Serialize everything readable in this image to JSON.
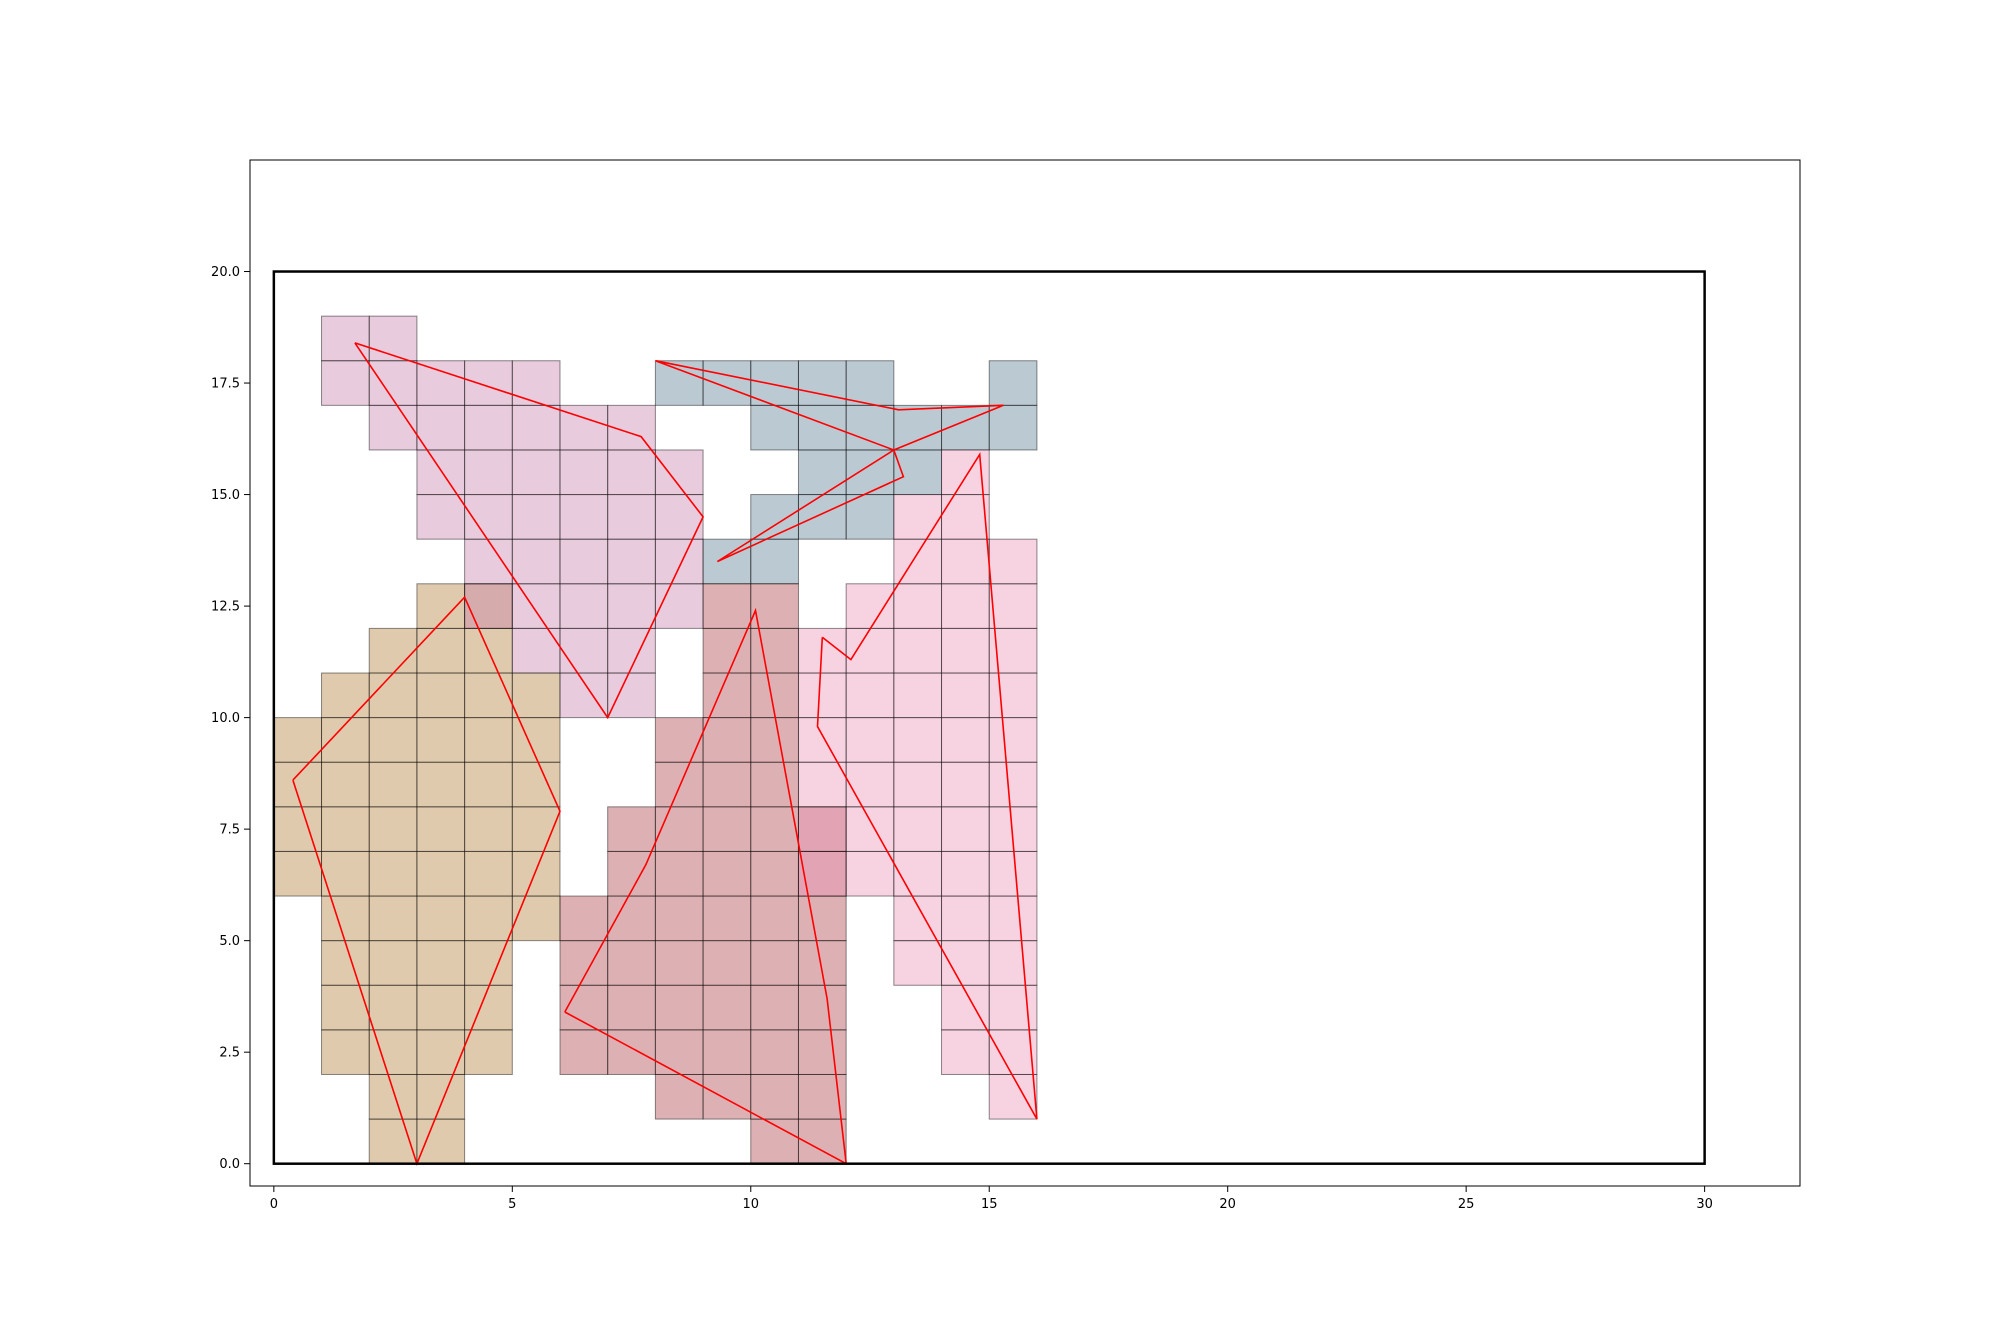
{
  "chart_data": {
    "type": "polygon-grid",
    "xlim": [
      -0.5,
      32
    ],
    "ylim": [
      -0.5,
      22.5
    ],
    "x_ticks": [
      0,
      5,
      10,
      15,
      20,
      25,
      30
    ],
    "x_tick_labels": [
      "0",
      "5",
      "10",
      "15",
      "20",
      "25",
      "30"
    ],
    "y_ticks": [
      0,
      2.5,
      5,
      7.5,
      10,
      12.5,
      15,
      17.5,
      20
    ],
    "y_tick_labels": [
      "0.0",
      "2.5",
      "5.0",
      "7.5",
      "10.0",
      "12.5",
      "15.0",
      "17.5",
      "20.0"
    ],
    "boundary": {
      "x": [
        0,
        30
      ],
      "y": [
        0,
        20
      ],
      "color": "#000000"
    },
    "grid": false,
    "regions": [
      {
        "color": "#b07a35",
        "cells": [
          [
            0,
            6
          ],
          [
            0,
            7
          ],
          [
            0,
            8
          ],
          [
            0,
            9
          ],
          [
            1,
            2
          ],
          [
            1,
            3
          ],
          [
            1,
            4
          ],
          [
            1,
            5
          ],
          [
            1,
            6
          ],
          [
            1,
            7
          ],
          [
            1,
            8
          ],
          [
            1,
            9
          ],
          [
            1,
            10
          ],
          [
            2,
            0
          ],
          [
            2,
            1
          ],
          [
            2,
            2
          ],
          [
            2,
            3
          ],
          [
            2,
            4
          ],
          [
            2,
            5
          ],
          [
            2,
            6
          ],
          [
            2,
            7
          ],
          [
            2,
            8
          ],
          [
            2,
            9
          ],
          [
            2,
            10
          ],
          [
            2,
            11
          ],
          [
            3,
            0
          ],
          [
            3,
            1
          ],
          [
            3,
            2
          ],
          [
            3,
            3
          ],
          [
            3,
            4
          ],
          [
            3,
            5
          ],
          [
            3,
            6
          ],
          [
            3,
            7
          ],
          [
            3,
            8
          ],
          [
            3,
            9
          ],
          [
            3,
            10
          ],
          [
            3,
            11
          ],
          [
            3,
            12
          ],
          [
            4,
            2
          ],
          [
            4,
            3
          ],
          [
            4,
            4
          ],
          [
            4,
            5
          ],
          [
            4,
            6
          ],
          [
            4,
            7
          ],
          [
            4,
            8
          ],
          [
            4,
            9
          ],
          [
            4,
            10
          ],
          [
            4,
            11
          ],
          [
            4,
            12
          ],
          [
            5,
            5
          ],
          [
            5,
            6
          ],
          [
            5,
            7
          ],
          [
            5,
            8
          ],
          [
            5,
            9
          ],
          [
            5,
            10
          ]
        ],
        "polygon": [
          [
            0.4,
            8.6
          ],
          [
            4,
            12.7
          ],
          [
            6,
            7.9
          ],
          [
            3,
            0
          ],
          [
            0.4,
            8.6
          ]
        ]
      },
      {
        "color": "#c67da8",
        "cells": [
          [
            1,
            17
          ],
          [
            1,
            18
          ],
          [
            2,
            16
          ],
          [
            2,
            17
          ],
          [
            2,
            18
          ],
          [
            3,
            14
          ],
          [
            3,
            15
          ],
          [
            3,
            16
          ],
          [
            3,
            17
          ],
          [
            4,
            12
          ],
          [
            4,
            13
          ],
          [
            4,
            14
          ],
          [
            4,
            15
          ],
          [
            4,
            16
          ],
          [
            4,
            17
          ],
          [
            5,
            11
          ],
          [
            5,
            12
          ],
          [
            5,
            13
          ],
          [
            5,
            14
          ],
          [
            5,
            15
          ],
          [
            5,
            16
          ],
          [
            5,
            17
          ],
          [
            6,
            10
          ],
          [
            6,
            11
          ],
          [
            6,
            12
          ],
          [
            6,
            13
          ],
          [
            6,
            14
          ],
          [
            6,
            15
          ],
          [
            6,
            16
          ],
          [
            7,
            10
          ],
          [
            7,
            11
          ],
          [
            7,
            12
          ],
          [
            7,
            13
          ],
          [
            7,
            14
          ],
          [
            7,
            15
          ],
          [
            7,
            16
          ],
          [
            8,
            12
          ],
          [
            8,
            13
          ],
          [
            8,
            14
          ],
          [
            8,
            15
          ]
        ],
        "polygon": [
          [
            1.7,
            18.4
          ],
          [
            7.7,
            16.3
          ],
          [
            9,
            14.5
          ],
          [
            7,
            10
          ],
          [
            1.7,
            18.4
          ]
        ]
      },
      {
        "color": "#56788e",
        "cells": [
          [
            8,
            17
          ],
          [
            9,
            13
          ],
          [
            9,
            17
          ],
          [
            10,
            13
          ],
          [
            10,
            14
          ],
          [
            10,
            16
          ],
          [
            10,
            17
          ],
          [
            11,
            14
          ],
          [
            11,
            15
          ],
          [
            11,
            16
          ],
          [
            11,
            17
          ],
          [
            12,
            14
          ],
          [
            12,
            15
          ],
          [
            12,
            16
          ],
          [
            12,
            17
          ],
          [
            13,
            15
          ],
          [
            13,
            16
          ],
          [
            14,
            16
          ],
          [
            15,
            16
          ],
          [
            15,
            17
          ]
        ],
        "polygon": [
          [
            8,
            18
          ],
          [
            13,
            16
          ],
          [
            13.2,
            15.4
          ],
          [
            9.3,
            13.5
          ],
          [
            13,
            16
          ],
          [
            15.3,
            17
          ],
          [
            13.1,
            16.9
          ],
          [
            8,
            18
          ]
        ]
      },
      {
        "color": "#a93d43",
        "cells": [
          [
            6,
            2
          ],
          [
            6,
            3
          ],
          [
            6,
            4
          ],
          [
            6,
            5
          ],
          [
            7,
            2
          ],
          [
            7,
            3
          ],
          [
            7,
            4
          ],
          [
            7,
            5
          ],
          [
            7,
            6
          ],
          [
            7,
            7
          ],
          [
            8,
            1
          ],
          [
            8,
            2
          ],
          [
            8,
            3
          ],
          [
            8,
            4
          ],
          [
            8,
            5
          ],
          [
            8,
            6
          ],
          [
            8,
            7
          ],
          [
            8,
            8
          ],
          [
            8,
            9
          ],
          [
            9,
            1
          ],
          [
            9,
            2
          ],
          [
            9,
            3
          ],
          [
            9,
            4
          ],
          [
            9,
            5
          ],
          [
            9,
            6
          ],
          [
            9,
            7
          ],
          [
            9,
            8
          ],
          [
            9,
            9
          ],
          [
            9,
            10
          ],
          [
            9,
            11
          ],
          [
            9,
            12
          ],
          [
            10,
            0
          ],
          [
            10,
            1
          ],
          [
            10,
            2
          ],
          [
            10,
            3
          ],
          [
            10,
            4
          ],
          [
            10,
            5
          ],
          [
            10,
            6
          ],
          [
            10,
            7
          ],
          [
            10,
            8
          ],
          [
            10,
            9
          ],
          [
            10,
            10
          ],
          [
            10,
            11
          ],
          [
            10,
            12
          ],
          [
            11,
            0
          ],
          [
            11,
            1
          ],
          [
            11,
            2
          ],
          [
            11,
            3
          ],
          [
            11,
            4
          ],
          [
            11,
            5
          ],
          [
            11,
            6
          ],
          [
            11,
            7
          ]
        ],
        "polygon": [
          [
            6.1,
            3.4
          ],
          [
            7.8,
            6.7
          ],
          [
            10.1,
            12.4
          ],
          [
            11.6,
            3.7
          ],
          [
            12,
            0
          ],
          [
            6.1,
            3.4
          ]
        ]
      },
      {
        "color": "#ec8fb3",
        "cells": [
          [
            11,
            6
          ],
          [
            11,
            7
          ],
          [
            11,
            8
          ],
          [
            11,
            9
          ],
          [
            11,
            10
          ],
          [
            11,
            11
          ],
          [
            12,
            6
          ],
          [
            12,
            7
          ],
          [
            12,
            8
          ],
          [
            12,
            9
          ],
          [
            12,
            10
          ],
          [
            12,
            11
          ],
          [
            12,
            12
          ],
          [
            13,
            4
          ],
          [
            13,
            5
          ],
          [
            13,
            6
          ],
          [
            13,
            7
          ],
          [
            13,
            8
          ],
          [
            13,
            9
          ],
          [
            13,
            10
          ],
          [
            13,
            11
          ],
          [
            13,
            12
          ],
          [
            13,
            13
          ],
          [
            13,
            14
          ],
          [
            14,
            2
          ],
          [
            14,
            3
          ],
          [
            14,
            4
          ],
          [
            14,
            5
          ],
          [
            14,
            6
          ],
          [
            14,
            7
          ],
          [
            14,
            8
          ],
          [
            14,
            9
          ],
          [
            14,
            10
          ],
          [
            14,
            11
          ],
          [
            14,
            12
          ],
          [
            14,
            13
          ],
          [
            14,
            14
          ],
          [
            14,
            15
          ],
          [
            15,
            1
          ],
          [
            15,
            2
          ],
          [
            15,
            3
          ],
          [
            15,
            4
          ],
          [
            15,
            5
          ],
          [
            15,
            6
          ],
          [
            15,
            7
          ],
          [
            15,
            8
          ],
          [
            15,
            9
          ],
          [
            15,
            10
          ],
          [
            15,
            11
          ],
          [
            15,
            12
          ],
          [
            15,
            13
          ]
        ],
        "polygon": [
          [
            11.5,
            11.8
          ],
          [
            12.1,
            11.3
          ],
          [
            14.8,
            15.9
          ],
          [
            16,
            1
          ],
          [
            11.4,
            9.8
          ],
          [
            11.5,
            11.8
          ]
        ]
      }
    ]
  }
}
